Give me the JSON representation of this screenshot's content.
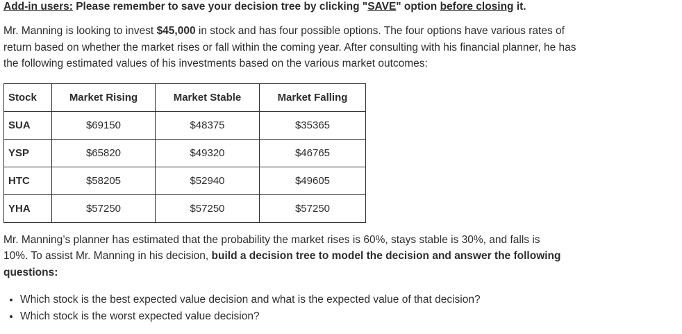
{
  "notice": {
    "label": "Add-in users:",
    "text1": " Please remember to save your decision tree by clicking \"",
    "save": "SAVE",
    "text2": "\" option ",
    "before_closing": "before closing",
    "text3": " it."
  },
  "intro": {
    "part1": "Mr. Manning is looking to invest ",
    "amount": "$45,000",
    "part2": " in stock and has four possible options. The four options have various rates of return based on whether the market rises or fall within the coming year. After consulting with his financial planner, he has the following estimated values of his investments based on the various market outcomes:"
  },
  "table": {
    "headers": [
      "Stock",
      "Market Rising",
      "Market Stable",
      "Market Falling"
    ],
    "rows": [
      [
        "SUA",
        "$69150",
        "$48375",
        "$35365"
      ],
      [
        "YSP",
        "$65820",
        "$49320",
        "$46765"
      ],
      [
        "HTC",
        "$58205",
        "$52940",
        "$49605"
      ],
      [
        "YHA",
        "$57250",
        "$57250",
        "$57250"
      ]
    ]
  },
  "after": {
    "part1": "Mr. Manning’s planner has estimated that the probability the market rises is 60%, stays stable is 30%, and falls is 10%. To assist Mr. Manning in his decision, ",
    "bold": "build a decision tree to model the decision and answer the following questions:"
  },
  "questions": [
    "Which stock is the best expected value decision and what is the expected value of that decision?",
    "Which stock is the worst expected value decision?"
  ]
}
